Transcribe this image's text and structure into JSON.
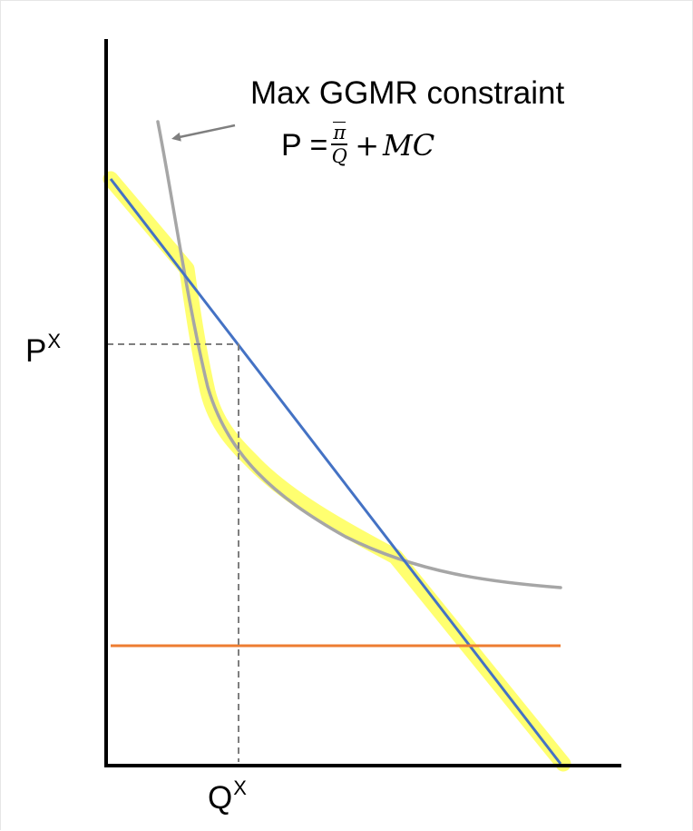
{
  "diagram": {
    "annotation": {
      "title": "Max GGMR constraint",
      "formula_lhs": "P =",
      "formula_numerator": "π",
      "formula_denominator": "Q",
      "formula_plus": "+",
      "formula_rhs": "MC"
    },
    "axis_labels": {
      "price": "P",
      "price_superscript": "X",
      "quantity": "Q",
      "quantity_superscript": "X"
    },
    "colors": {
      "demand_line": "#4472c4",
      "constraint_curve": "#a6a6a6",
      "marginal_cost_line": "#ed7d31",
      "highlight": "#ffff40",
      "guide_lines": "#7f7f7f",
      "axes": "#000000"
    }
  }
}
